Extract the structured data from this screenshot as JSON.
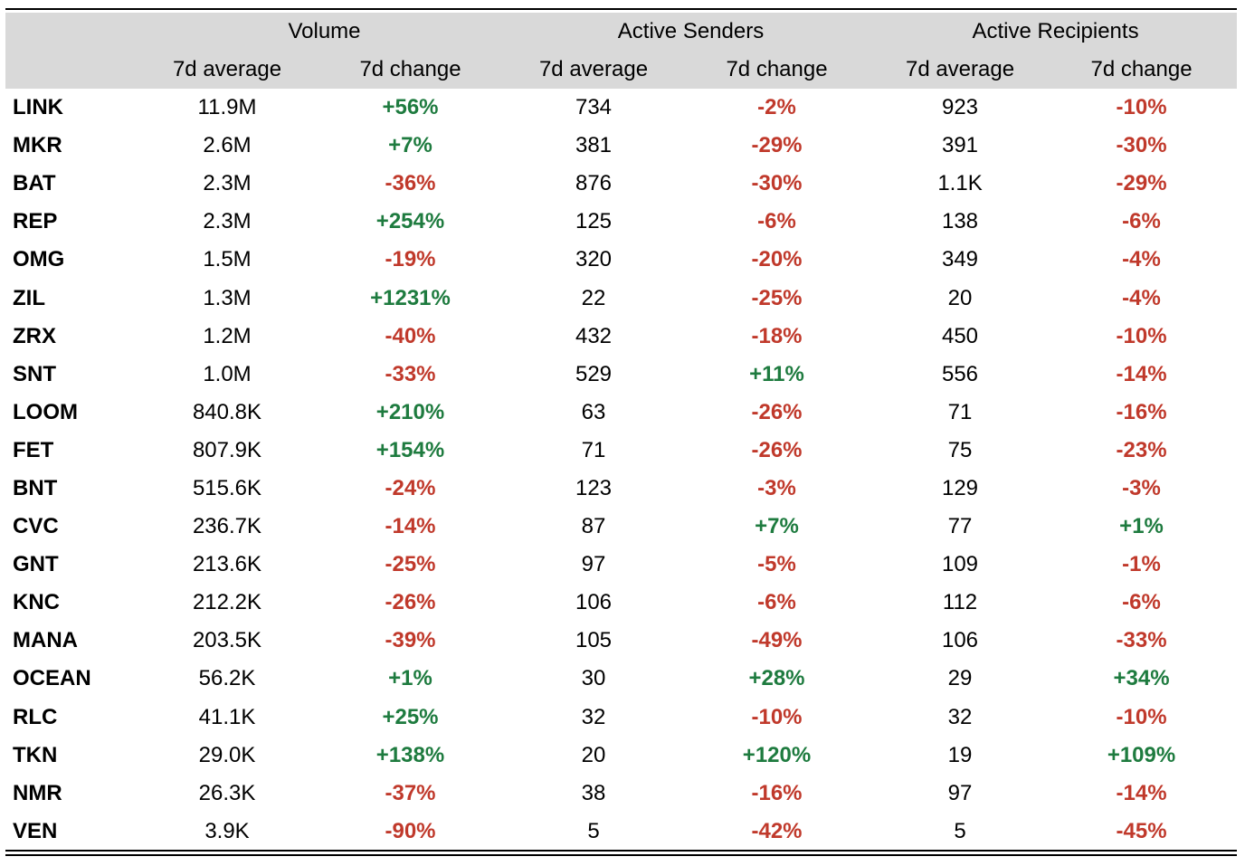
{
  "header": {
    "groups": [
      "Volume",
      "Active Senders",
      "Active Recipients"
    ],
    "sub": [
      "7d average",
      "7d change",
      "7d average",
      "7d change",
      "7d average",
      "7d change"
    ]
  },
  "colors": {
    "positive": "#1e7b3f",
    "negative": "#c0392b",
    "header_bg": "#d9d9d9"
  },
  "rows": [
    {
      "token": "LINK",
      "vol_avg": "11.9M",
      "vol_chg": "+56%",
      "snd_avg": "734",
      "snd_chg": "-2%",
      "rcp_avg": "923",
      "rcp_chg": "-10%"
    },
    {
      "token": "MKR",
      "vol_avg": "2.6M",
      "vol_chg": "+7%",
      "snd_avg": "381",
      "snd_chg": "-29%",
      "rcp_avg": "391",
      "rcp_chg": "-30%"
    },
    {
      "token": "BAT",
      "vol_avg": "2.3M",
      "vol_chg": "-36%",
      "snd_avg": "876",
      "snd_chg": "-30%",
      "rcp_avg": "1.1K",
      "rcp_chg": "-29%"
    },
    {
      "token": "REP",
      "vol_avg": "2.3M",
      "vol_chg": "+254%",
      "snd_avg": "125",
      "snd_chg": "-6%",
      "rcp_avg": "138",
      "rcp_chg": "-6%"
    },
    {
      "token": "OMG",
      "vol_avg": "1.5M",
      "vol_chg": "-19%",
      "snd_avg": "320",
      "snd_chg": "-20%",
      "rcp_avg": "349",
      "rcp_chg": "-4%"
    },
    {
      "token": "ZIL",
      "vol_avg": "1.3M",
      "vol_chg": "+1231%",
      "snd_avg": "22",
      "snd_chg": "-25%",
      "rcp_avg": "20",
      "rcp_chg": "-4%"
    },
    {
      "token": "ZRX",
      "vol_avg": "1.2M",
      "vol_chg": "-40%",
      "snd_avg": "432",
      "snd_chg": "-18%",
      "rcp_avg": "450",
      "rcp_chg": "-10%"
    },
    {
      "token": "SNT",
      "vol_avg": "1.0M",
      "vol_chg": "-33%",
      "snd_avg": "529",
      "snd_chg": "+11%",
      "rcp_avg": "556",
      "rcp_chg": "-14%"
    },
    {
      "token": "LOOM",
      "vol_avg": "840.8K",
      "vol_chg": "+210%",
      "snd_avg": "63",
      "snd_chg": "-26%",
      "rcp_avg": "71",
      "rcp_chg": "-16%"
    },
    {
      "token": "FET",
      "vol_avg": "807.9K",
      "vol_chg": "+154%",
      "snd_avg": "71",
      "snd_chg": "-26%",
      "rcp_avg": "75",
      "rcp_chg": "-23%"
    },
    {
      "token": "BNT",
      "vol_avg": "515.6K",
      "vol_chg": "-24%",
      "snd_avg": "123",
      "snd_chg": "-3%",
      "rcp_avg": "129",
      "rcp_chg": "-3%"
    },
    {
      "token": "CVC",
      "vol_avg": "236.7K",
      "vol_chg": "-14%",
      "snd_avg": "87",
      "snd_chg": "+7%",
      "rcp_avg": "77",
      "rcp_chg": "+1%"
    },
    {
      "token": "GNT",
      "vol_avg": "213.6K",
      "vol_chg": "-25%",
      "snd_avg": "97",
      "snd_chg": "-5%",
      "rcp_avg": "109",
      "rcp_chg": "-1%"
    },
    {
      "token": "KNC",
      "vol_avg": "212.2K",
      "vol_chg": "-26%",
      "snd_avg": "106",
      "snd_chg": "-6%",
      "rcp_avg": "112",
      "rcp_chg": "-6%"
    },
    {
      "token": "MANA",
      "vol_avg": "203.5K",
      "vol_chg": "-39%",
      "snd_avg": "105",
      "snd_chg": "-49%",
      "rcp_avg": "106",
      "rcp_chg": "-33%"
    },
    {
      "token": "OCEAN",
      "vol_avg": "56.2K",
      "vol_chg": "+1%",
      "snd_avg": "30",
      "snd_chg": "+28%",
      "rcp_avg": "29",
      "rcp_chg": "+34%"
    },
    {
      "token": "RLC",
      "vol_avg": "41.1K",
      "vol_chg": "+25%",
      "snd_avg": "32",
      "snd_chg": "-10%",
      "rcp_avg": "32",
      "rcp_chg": "-10%"
    },
    {
      "token": "TKN",
      "vol_avg": "29.0K",
      "vol_chg": "+138%",
      "snd_avg": "20",
      "snd_chg": "+120%",
      "rcp_avg": "19",
      "rcp_chg": "+109%"
    },
    {
      "token": "NMR",
      "vol_avg": "26.3K",
      "vol_chg": "-37%",
      "snd_avg": "38",
      "snd_chg": "-16%",
      "rcp_avg": "97",
      "rcp_chg": "-14%"
    },
    {
      "token": "VEN",
      "vol_avg": "3.9K",
      "vol_chg": "-90%",
      "snd_avg": "5",
      "snd_chg": "-42%",
      "rcp_avg": "5",
      "rcp_chg": "-45%"
    }
  ]
}
